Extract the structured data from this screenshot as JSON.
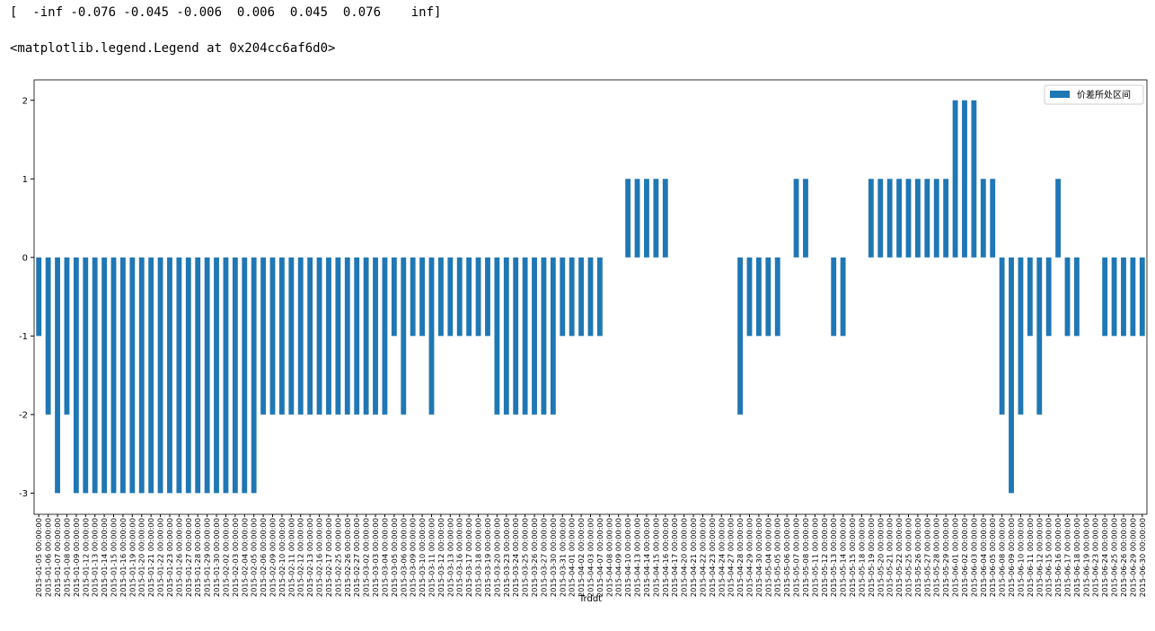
{
  "output_lines": [
    "[  -inf -0.076 -0.045 -0.006  0.006  0.045  0.076    inf]",
    "<matplotlib.legend.Legend at 0x204cc6af6d0>"
  ],
  "chart_data": {
    "type": "bar",
    "xlabel": "Trddt",
    "color": "#1f77b4",
    "legend": "upper right",
    "ylim": [
      -3.27,
      2.26
    ],
    "yticks": [
      -3,
      -2,
      -1,
      0,
      1,
      2
    ],
    "categories": [
      "2015-01-05 00:00:00",
      "2015-01-06 00:00:00",
      "2015-01-07 00:00:00",
      "2015-01-08 00:00:00",
      "2015-01-09 00:00:00",
      "2015-01-12 00:00:00",
      "2015-01-13 00:00:00",
      "2015-01-14 00:00:00",
      "2015-01-15 00:00:00",
      "2015-01-16 00:00:00",
      "2015-01-19 00:00:00",
      "2015-01-20 00:00:00",
      "2015-01-21 00:00:00",
      "2015-01-22 00:00:00",
      "2015-01-23 00:00:00",
      "2015-01-26 00:00:00",
      "2015-01-27 00:00:00",
      "2015-01-28 00:00:00",
      "2015-01-29 00:00:00",
      "2015-01-30 00:00:00",
      "2015-02-02 00:00:00",
      "2015-02-03 00:00:00",
      "2015-02-04 00:00:00",
      "2015-02-05 00:00:00",
      "2015-02-06 00:00:00",
      "2015-02-09 00:00:00",
      "2015-02-10 00:00:00",
      "2015-02-11 00:00:00",
      "2015-02-12 00:00:00",
      "2015-02-13 00:00:00",
      "2015-02-16 00:00:00",
      "2015-02-17 00:00:00",
      "2015-02-25 00:00:00",
      "2015-02-26 00:00:00",
      "2015-02-27 00:00:00",
      "2015-03-02 00:00:00",
      "2015-03-03 00:00:00",
      "2015-03-04 00:00:00",
      "2015-03-05 00:00:00",
      "2015-03-06 00:00:00",
      "2015-03-09 00:00:00",
      "2015-03-10 00:00:00",
      "2015-03-11 00:00:00",
      "2015-03-12 00:00:00",
      "2015-03-13 00:00:00",
      "2015-03-16 00:00:00",
      "2015-03-17 00:00:00",
      "2015-03-18 00:00:00",
      "2015-03-19 00:00:00",
      "2015-03-20 00:00:00",
      "2015-03-23 00:00:00",
      "2015-03-24 00:00:00",
      "2015-03-25 00:00:00",
      "2015-03-26 00:00:00",
      "2015-03-27 00:00:00",
      "2015-03-30 00:00:00",
      "2015-03-31 00:00:00",
      "2015-04-01 00:00:00",
      "2015-04-02 00:00:00",
      "2015-04-03 00:00:00",
      "2015-04-07 00:00:00",
      "2015-04-08 00:00:00",
      "2015-04-09 00:00:00",
      "2015-04-10 00:00:00",
      "2015-04-13 00:00:00",
      "2015-04-14 00:00:00",
      "2015-04-15 00:00:00",
      "2015-04-16 00:00:00",
      "2015-04-17 00:00:00",
      "2015-04-20 00:00:00",
      "2015-04-21 00:00:00",
      "2015-04-22 00:00:00",
      "2015-04-23 00:00:00",
      "2015-04-24 00:00:00",
      "2015-04-27 00:00:00",
      "2015-04-28 00:00:00",
      "2015-04-29 00:00:00",
      "2015-04-30 00:00:00",
      "2015-05-04 00:00:00",
      "2015-05-05 00:00:00",
      "2015-05-06 00:00:00",
      "2015-05-07 00:00:00",
      "2015-05-08 00:00:00",
      "2015-05-11 00:00:00",
      "2015-05-12 00:00:00",
      "2015-05-13 00:00:00",
      "2015-05-14 00:00:00",
      "2015-05-15 00:00:00",
      "2015-05-18 00:00:00",
      "2015-05-19 00:00:00",
      "2015-05-20 00:00:00",
      "2015-05-21 00:00:00",
      "2015-05-22 00:00:00",
      "2015-05-25 00:00:00",
      "2015-05-26 00:00:00",
      "2015-05-27 00:00:00",
      "2015-05-28 00:00:00",
      "2015-05-29 00:00:00",
      "2015-06-01 00:00:00",
      "2015-06-02 00:00:00",
      "2015-06-03 00:00:00",
      "2015-06-04 00:00:00",
      "2015-06-05 00:00:00",
      "2015-06-08 00:00:00",
      "2015-06-09 00:00:00",
      "2015-06-10 00:00:00",
      "2015-06-11 00:00:00",
      "2015-06-12 00:00:00",
      "2015-06-15 00:00:00",
      "2015-06-16 00:00:00",
      "2015-06-17 00:00:00",
      "2015-06-18 00:00:00",
      "2015-06-19 00:00:00",
      "2015-06-23 00:00:00",
      "2015-06-24 00:00:00",
      "2015-06-25 00:00:00",
      "2015-06-26 00:00:00",
      "2015-06-29 00:00:00",
      "2015-06-30 00:00:00"
    ],
    "series": [
      {
        "name": "价差所处区间",
        "color": "#1f77b4",
        "values": [
          -1,
          -2,
          -3,
          -2,
          -3,
          -3,
          -3,
          -3,
          -3,
          -3,
          -3,
          -3,
          -3,
          -3,
          -3,
          -3,
          -3,
          -3,
          -3,
          -3,
          -3,
          -3,
          -3,
          -3,
          -2,
          -2,
          -2,
          -2,
          -2,
          -2,
          -2,
          -2,
          -2,
          -2,
          -2,
          -2,
          -2,
          -2,
          -1,
          -2,
          -1,
          -1,
          -2,
          -1,
          -1,
          -1,
          -1,
          -1,
          -1,
          -2,
          -2,
          -2,
          -2,
          -2,
          -2,
          -2,
          -1,
          -1,
          -1,
          -1,
          -1,
          0,
          0,
          1,
          1,
          1,
          1,
          1,
          0,
          0,
          0,
          0,
          0,
          0,
          0,
          -2,
          -1,
          -1,
          -1,
          -1,
          0,
          1,
          1,
          0,
          0,
          -1,
          -1,
          0,
          0,
          1,
          1,
          1,
          1,
          1,
          1,
          1,
          1,
          1,
          2,
          2,
          2,
          1,
          1,
          -2,
          -3,
          -2,
          -1,
          -2,
          -1,
          1,
          -1,
          -1,
          0,
          0,
          -1,
          -1,
          -1,
          -1,
          -1
        ]
      }
    ]
  }
}
